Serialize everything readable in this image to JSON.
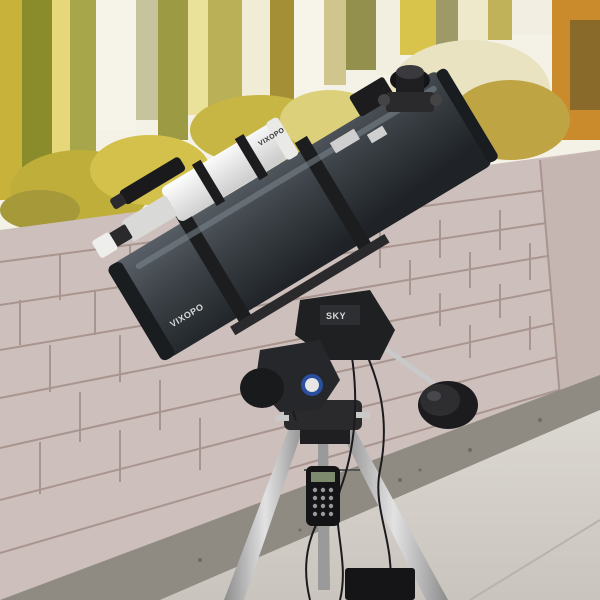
{
  "photo": {
    "subject": "reflector-telescope-on-equatorial-mount",
    "colors": {
      "wall": "#cdbfbb",
      "wall_mortar": "#a9958f",
      "sky": "#f4f1e6",
      "foliage": "#c9b23a",
      "concrete": "#d4cfc8",
      "gravel": "#8f8a82",
      "tube": "#3b4146",
      "finder": "#f2f2f0",
      "tripod": "#b9b9b9",
      "counterweight": "#1c1c1e"
    }
  },
  "labels": {
    "tube_brand": "VIXOPO",
    "finder_brand": "VIXOPO",
    "mount_brand": "SKY"
  }
}
